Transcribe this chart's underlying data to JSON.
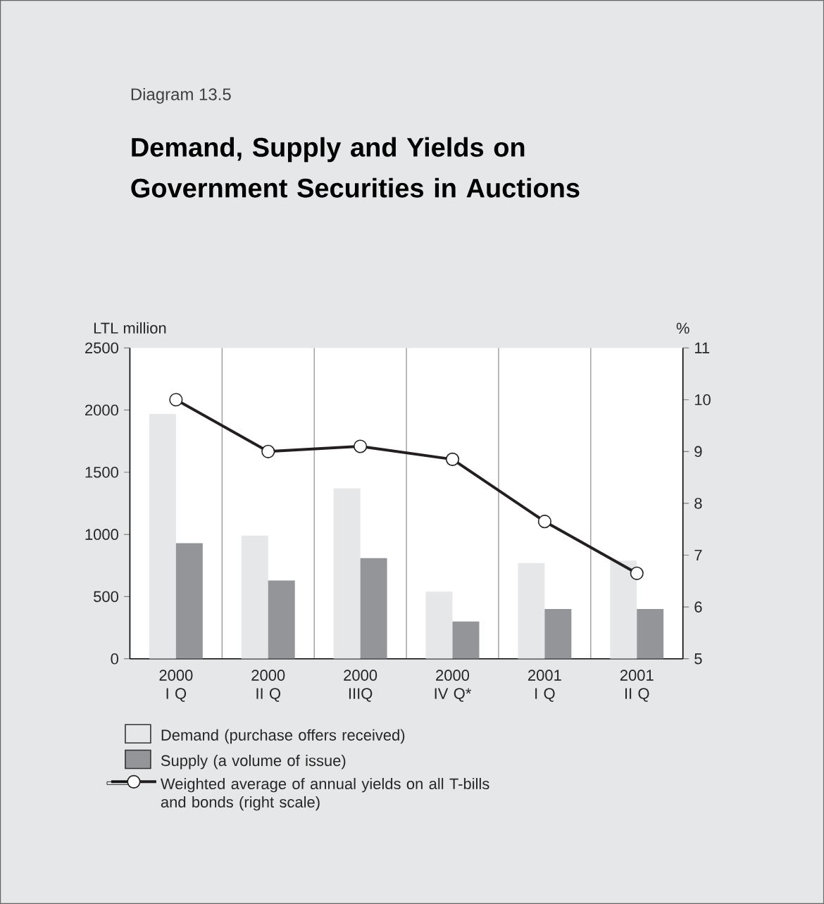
{
  "chart_data": {
    "type": "bar",
    "subtitle": "Diagram 13.5",
    "title": "Demand, Supply and Yields on Government Securities in Auctions",
    "ylabel": "LTL million",
    "y2label": "%",
    "categories": [
      "2000 I Q",
      "2000 II Q",
      "2000 IIIQ",
      "2000 IV Q*",
      "2001 I Q",
      "2001 II Q"
    ],
    "series": [
      {
        "name": "Demand (purchase offers received)",
        "color": "#e6e7e9",
        "values": [
          1970,
          990,
          1370,
          540,
          770,
          790
        ]
      },
      {
        "name": "Supply (a volume of issue)",
        "color": "#939598",
        "values": [
          930,
          630,
          810,
          300,
          400,
          400
        ]
      },
      {
        "name": "Weighted average of annual yields on all T-bills and bonds (right scale)",
        "type": "line",
        "axis": "y2",
        "color": "#231f20",
        "marker": "circle",
        "values": [
          10.0,
          9.0,
          9.1,
          8.85,
          7.65,
          6.65
        ]
      }
    ],
    "ylim": [
      0,
      2500
    ],
    "yticks": [
      0,
      500,
      1000,
      1500,
      2000,
      2500
    ],
    "y2lim": [
      5,
      11
    ],
    "y2ticks": [
      5,
      6,
      7,
      8,
      9,
      10,
      11
    ],
    "grid": "x",
    "legend": "bottom"
  }
}
